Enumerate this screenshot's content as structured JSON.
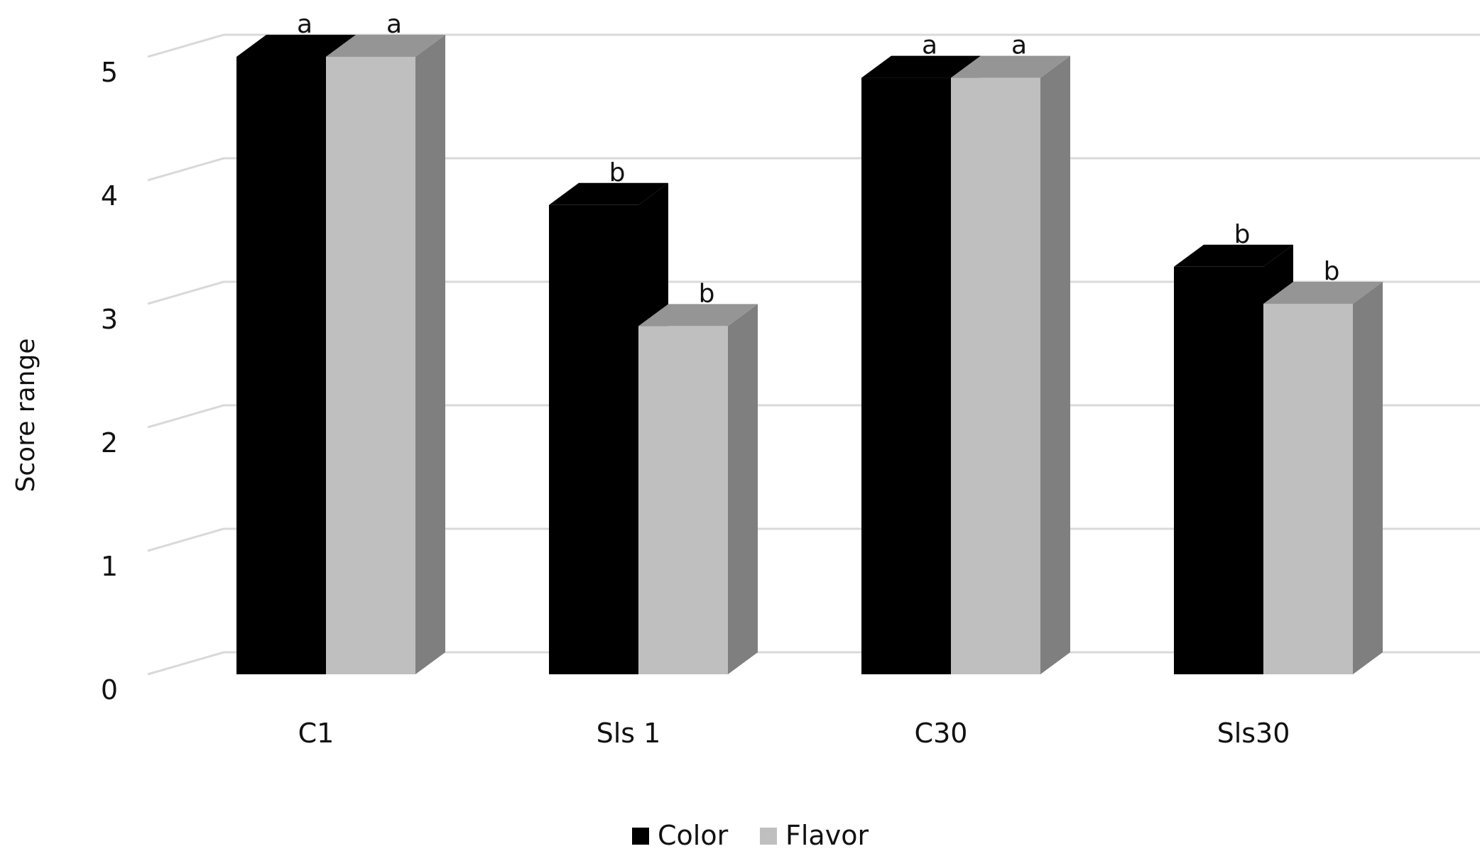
{
  "chart_data": {
    "type": "bar",
    "categories": [
      "C1",
      "Sls 1",
      "C30",
      "Sls30"
    ],
    "series": [
      {
        "name": "Color",
        "values": [
          5.0,
          3.8,
          4.83,
          3.3
        ],
        "significance": [
          "a",
          "b",
          "a",
          "b"
        ]
      },
      {
        "name": "Flavor",
        "values": [
          5.0,
          2.82,
          4.83,
          3.0
        ],
        "significance": [
          "a",
          "b",
          "a",
          "b"
        ]
      }
    ],
    "xlabel": "",
    "ylabel": "Score range",
    "ylim": [
      0,
      5
    ],
    "yticks": [
      "0",
      "1",
      "2",
      "3",
      "4",
      "5"
    ],
    "grid": true,
    "legend_position": "bottom",
    "three_d": true,
    "colors": {
      "Color": {
        "front": "#000000",
        "top": "#000000",
        "side": "#000000"
      },
      "Flavor": {
        "front": "#bfbfbf",
        "top": "#959595",
        "side": "#7f7f7f"
      },
      "grid": "#d9d9d9"
    }
  }
}
